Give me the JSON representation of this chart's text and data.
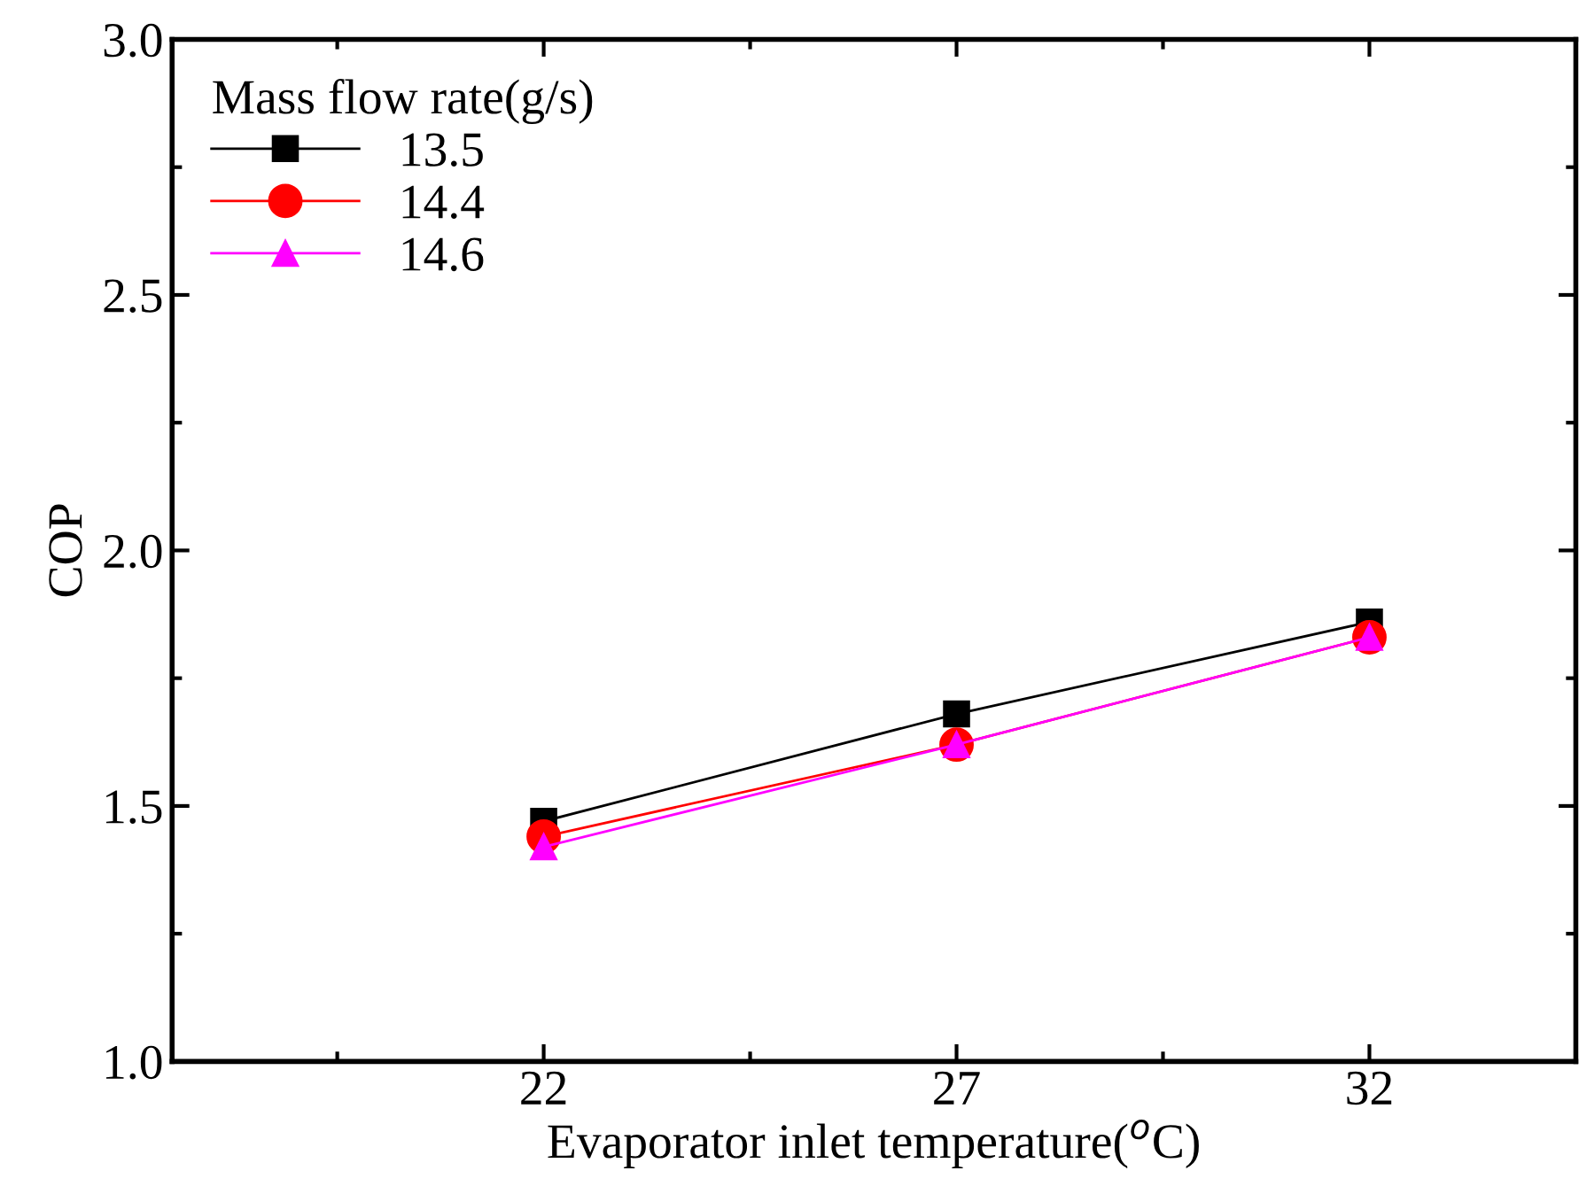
{
  "chart_data": {
    "type": "line",
    "xlabel": "Evaporator inlet temperature($^{o}$C)",
    "ylabel": "COP",
    "legend_title": "Mass flow rate(g/s)",
    "x": [
      22,
      27,
      32
    ],
    "series": [
      {
        "name": "13.5",
        "color": "#000000",
        "marker": "square",
        "values": [
          1.47,
          1.68,
          1.86
        ]
      },
      {
        "name": "14.4",
        "color": "#ff0000",
        "marker": "circle",
        "values": [
          1.44,
          1.62,
          1.83
        ]
      },
      {
        "name": "14.6",
        "color": "#ff00ff",
        "marker": "triangle",
        "values": [
          1.42,
          1.62,
          1.83
        ]
      }
    ],
    "xlim": [
      17.5,
      34.5
    ],
    "xticks": [
      22,
      27,
      32
    ],
    "ylim": [
      1.0,
      3.0
    ],
    "yticks": [
      {
        "value": 1.0,
        "label": "1.0"
      },
      {
        "value": 1.5,
        "label": "1.5"
      },
      {
        "value": 2.0,
        "label": "2.0"
      },
      {
        "value": 2.5,
        "label": "2.5"
      },
      {
        "value": 3.0,
        "label": "3.0"
      }
    ],
    "grid": false,
    "legend": "top left",
    "line_style": "solid"
  }
}
